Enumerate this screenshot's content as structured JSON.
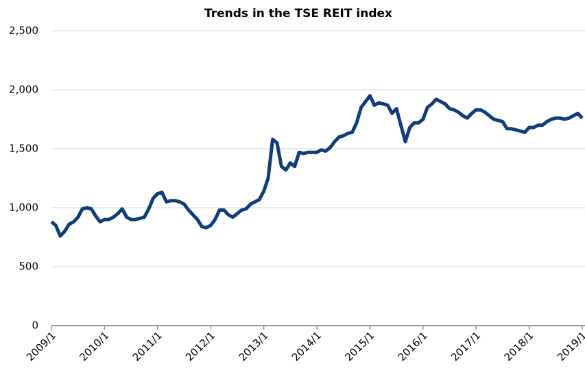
{
  "chart_data": {
    "type": "line",
    "title": "Trends in the TSE REIT index",
    "x": [
      "2009/1",
      "2009/2",
      "2009/3",
      "2009/4",
      "2009/5",
      "2009/6",
      "2009/7",
      "2009/8",
      "2009/9",
      "2009/10",
      "2009/11",
      "2009/12",
      "2010/1",
      "2010/2",
      "2010/3",
      "2010/4",
      "2010/5",
      "2010/6",
      "2010/7",
      "2010/8",
      "2010/9",
      "2010/10",
      "2010/11",
      "2010/12",
      "2011/1",
      "2011/2",
      "2011/3",
      "2011/4",
      "2011/5",
      "2011/6",
      "2011/7",
      "2011/8",
      "2011/9",
      "2011/10",
      "2011/11",
      "2011/12",
      "2012/1",
      "2012/2",
      "2012/3",
      "2012/4",
      "2012/5",
      "2012/6",
      "2012/7",
      "2012/8",
      "2012/9",
      "2012/10",
      "2012/11",
      "2012/12",
      "2013/1",
      "2013/2",
      "2013/3",
      "2013/4",
      "2013/5",
      "2013/6",
      "2013/7",
      "2013/8",
      "2013/9",
      "2013/10",
      "2013/11",
      "2013/12",
      "2014/1",
      "2014/2",
      "2014/3",
      "2014/4",
      "2014/5",
      "2014/6",
      "2014/7",
      "2014/8",
      "2014/9",
      "2014/10",
      "2014/11",
      "2014/12",
      "2015/1",
      "2015/2",
      "2015/3",
      "2015/4",
      "2015/5",
      "2015/6",
      "2015/7",
      "2015/8",
      "2015/9",
      "2015/10",
      "2015/11",
      "2015/12",
      "2016/1",
      "2016/2",
      "2016/3",
      "2016/4",
      "2016/5",
      "2016/6",
      "2016/7",
      "2016/8",
      "2016/9",
      "2016/10",
      "2016/11",
      "2016/12",
      "2017/1",
      "2017/2",
      "2017/3",
      "2017/4",
      "2017/5",
      "2017/6",
      "2017/7",
      "2017/8",
      "2017/9",
      "2017/10",
      "2017/11",
      "2017/12",
      "2018/1",
      "2018/2",
      "2018/3",
      "2018/4",
      "2018/5",
      "2018/6",
      "2018/7",
      "2018/8",
      "2018/9",
      "2018/10",
      "2018/11",
      "2018/12",
      "2019/1"
    ],
    "series": [
      {
        "name": "TSE REIT index",
        "color": "#0f3d7c",
        "values": [
          880,
          850,
          760,
          800,
          860,
          880,
          920,
          990,
          1000,
          990,
          930,
          880,
          900,
          900,
          920,
          950,
          990,
          920,
          900,
          900,
          910,
          920,
          990,
          1080,
          1120,
          1130,
          1050,
          1060,
          1060,
          1050,
          1030,
          980,
          940,
          900,
          840,
          830,
          850,
          900,
          980,
          980,
          940,
          920,
          950,
          980,
          990,
          1030,
          1050,
          1070,
          1140,
          1250,
          1580,
          1550,
          1350,
          1320,
          1380,
          1350,
          1470,
          1460,
          1470,
          1470,
          1470,
          1490,
          1480,
          1510,
          1560,
          1600,
          1610,
          1630,
          1640,
          1720,
          1850,
          1900,
          1950,
          1870,
          1890,
          1880,
          1870,
          1800,
          1840,
          1700,
          1560,
          1680,
          1720,
          1720,
          1750,
          1850,
          1880,
          1920,
          1900,
          1880,
          1840,
          1830,
          1810,
          1780,
          1760,
          1800,
          1830,
          1830,
          1810,
          1780,
          1750,
          1740,
          1730,
          1670,
          1670,
          1660,
          1650,
          1640,
          1680,
          1680,
          1700,
          1700,
          1730,
          1750,
          1760,
          1760,
          1750,
          1760,
          1780,
          1800,
          1760
        ]
      }
    ],
    "xlim": [
      "2009/1",
      "2019/1"
    ],
    "xticks": [
      "2009/1",
      "2010/1",
      "2011/1",
      "2012/1",
      "2013/1",
      "2014/1",
      "2015/1",
      "2016/1",
      "2017/1",
      "2018/1",
      "2019/1"
    ],
    "ylim": [
      0,
      2500
    ],
    "yticks": [
      0,
      {
        "value": 500,
        "label": "500"
      },
      {
        "value": 1000,
        "label": "1,000"
      },
      {
        "value": 1500,
        "label": "1,500"
      },
      {
        "value": 2000,
        "label": "2,000"
      },
      {
        "value": 2500,
        "label": "2,500"
      }
    ],
    "grid": true
  }
}
